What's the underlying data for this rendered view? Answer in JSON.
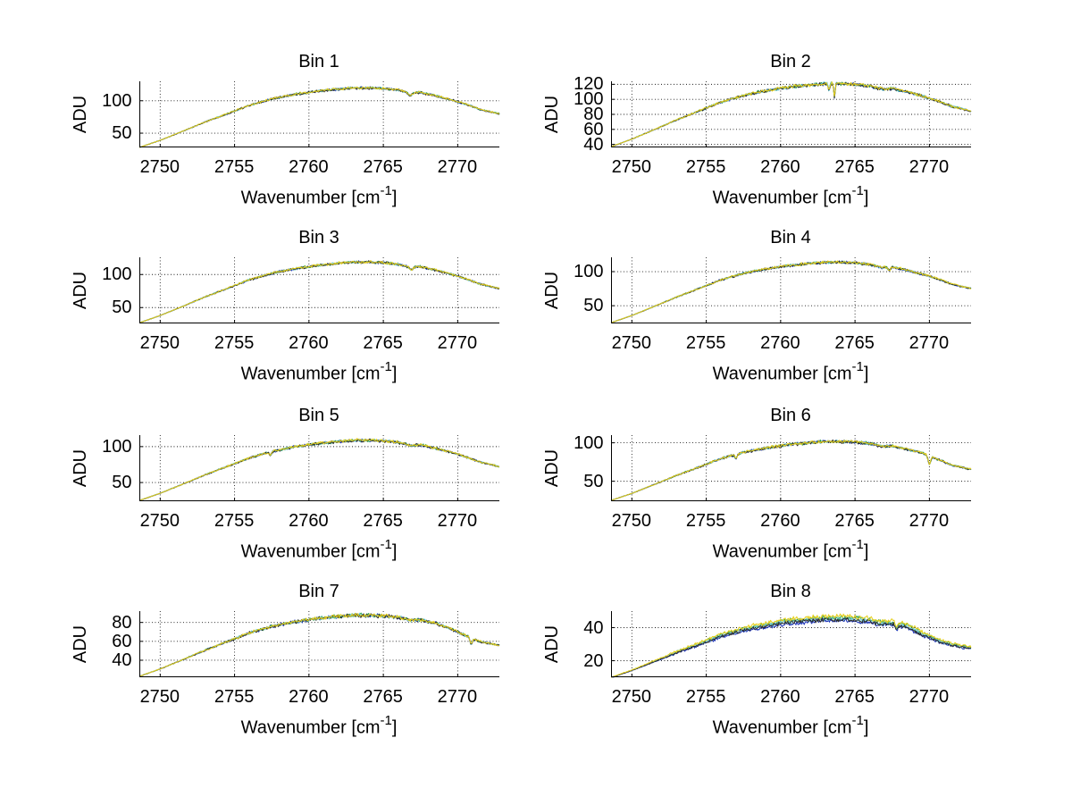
{
  "figure": {
    "background": "#ffffff",
    "axis_labels": {
      "y": "ADU",
      "x_pre": "Wavenumber [cm",
      "x_sup": "-1",
      "x_post": "]"
    },
    "grid_color": "#000000",
    "axis_color": "#000000",
    "series_palette": [
      {
        "name": "blue",
        "color": "#1a30b8"
      },
      {
        "name": "green",
        "color": "#30a24c"
      },
      {
        "name": "cyan",
        "color": "#6ecbd4"
      },
      {
        "name": "dark",
        "color": "#2b2b2b"
      },
      {
        "name": "yellow",
        "color": "#e6cf1a"
      }
    ]
  },
  "chart_data": [
    {
      "type": "line",
      "title": "Bin 1",
      "xlabel": "Wavenumber [cm⁻¹]",
      "ylabel": "ADU",
      "xlim": [
        2748.6,
        2772.8
      ],
      "ylim": [
        28,
        130
      ],
      "xticks": [
        2750,
        2755,
        2760,
        2765,
        2770
      ],
      "yticks": [
        50,
        100
      ],
      "grid": true,
      "x": [
        2748.6,
        2750,
        2751.5,
        2753,
        2754.5,
        2756,
        2757.5,
        2759,
        2760.5,
        2762,
        2763,
        2764,
        2765,
        2766,
        2766.8,
        2767.5,
        2768.5,
        2769.5,
        2770.5,
        2771.5,
        2772.8
      ],
      "adu": [
        28,
        39,
        52.8,
        67.1,
        80,
        93.3,
        103,
        109.9,
        114.9,
        118.2,
        120,
        120,
        119.1,
        116.8,
        112.2,
        113.1,
        108,
        102.1,
        95.2,
        86.9,
        80
      ],
      "spikes": [
        {
          "x": 2766.8,
          "d": 4,
          "w": 0.18
        }
      ],
      "noise": 1.8,
      "series_offsets": [
        -0.4,
        -0.2,
        -0.3,
        -0.5,
        0
      ]
    },
    {
      "type": "line",
      "title": "Bin 2",
      "xlabel": "Wavenumber [cm⁻¹]",
      "ylabel": "ADU",
      "xlim": [
        2748.6,
        2772.8
      ],
      "ylim": [
        36,
        124
      ],
      "xticks": [
        2750,
        2755,
        2760,
        2765,
        2770
      ],
      "yticks": [
        40,
        60,
        80,
        100,
        120
      ],
      "grid": true,
      "x": [
        2748.6,
        2750,
        2751.5,
        2753,
        2754.5,
        2756,
        2757.5,
        2759,
        2760.5,
        2762,
        2763,
        2764,
        2765,
        2766,
        2766.8,
        2767.5,
        2768.5,
        2769.5,
        2770.5,
        2771.5,
        2772.8
      ],
      "adu": [
        37,
        47.1,
        59.7,
        72.7,
        84.5,
        96.6,
        105.5,
        111.8,
        116.4,
        119.3,
        121,
        121,
        120.2,
        118.1,
        113.9,
        114.7,
        110.1,
        104.6,
        98.3,
        90.8,
        84.5
      ],
      "spikes": [
        {
          "x": 2763.25,
          "d": 9,
          "w": 0.07
        },
        {
          "x": 2763.62,
          "d": 19,
          "w": 0.06
        }
      ],
      "noise": 2.0,
      "series_offsets": [
        -0.4,
        -0.2,
        -0.3,
        -0.5,
        0
      ]
    },
    {
      "type": "line",
      "title": "Bin 3",
      "xlabel": "Wavenumber [cm⁻¹]",
      "ylabel": "ADU",
      "xlim": [
        2748.6,
        2772.8
      ],
      "ylim": [
        26,
        126
      ],
      "xticks": [
        2750,
        2755,
        2760,
        2765,
        2770
      ],
      "yticks": [
        50,
        100
      ],
      "grid": true,
      "x": [
        2748.6,
        2750,
        2751.5,
        2753,
        2754.5,
        2756,
        2757.5,
        2759,
        2760.5,
        2762,
        2763,
        2764,
        2765,
        2766,
        2766.8,
        2767.5,
        2768.5,
        2769.5,
        2770.5,
        2771.5,
        2772.8
      ],
      "adu": [
        27,
        38,
        51.8,
        66.1,
        79,
        92.3,
        102,
        108.9,
        113.9,
        117.2,
        119,
        119,
        118.1,
        115.8,
        111.2,
        112.1,
        107,
        101.1,
        94.2,
        85.9,
        79
      ],
      "spikes": [
        {
          "x": 2766.9,
          "d": 4,
          "w": 0.15
        }
      ],
      "noise": 1.8,
      "series_offsets": [
        -0.4,
        -0.2,
        -0.3,
        -0.5,
        0
      ]
    },
    {
      "type": "line",
      "title": "Bin 4",
      "xlabel": "Wavenumber [cm⁻¹]",
      "ylabel": "ADU",
      "xlim": [
        2748.6,
        2772.8
      ],
      "ylim": [
        24,
        121
      ],
      "xticks": [
        2750,
        2755,
        2760,
        2765,
        2770
      ],
      "yticks": [
        50,
        100
      ],
      "grid": true,
      "x": [
        2748.6,
        2750,
        2751.5,
        2753,
        2754.5,
        2756,
        2757.5,
        2759,
        2760.5,
        2762,
        2763,
        2764,
        2765,
        2766,
        2766.8,
        2767.5,
        2768.5,
        2769.5,
        2770.5,
        2771.5,
        2772.8
      ],
      "adu": [
        25,
        35.7,
        49,
        62.8,
        75.3,
        88.2,
        97.5,
        104.2,
        109.1,
        112.2,
        114,
        114,
        113.1,
        110.9,
        106.4,
        107.3,
        102.4,
        96.6,
        90,
        82,
        75.3
      ],
      "spikes": [
        {
          "x": 2767.3,
          "d": 5,
          "w": 0.12
        }
      ],
      "noise": 1.8,
      "series_offsets": [
        -0.4,
        -0.2,
        -0.3,
        -0.5,
        0
      ]
    },
    {
      "type": "line",
      "title": "Bin 5",
      "xlabel": "Wavenumber [cm⁻¹]",
      "ylabel": "ADU",
      "xlim": [
        2748.6,
        2772.8
      ],
      "ylim": [
        24,
        116
      ],
      "xticks": [
        2750,
        2755,
        2760,
        2765,
        2770
      ],
      "yticks": [
        50,
        100
      ],
      "grid": true,
      "x": [
        2748.6,
        2750,
        2751.5,
        2753,
        2754.5,
        2756,
        2757.5,
        2759,
        2760.5,
        2762,
        2763,
        2764,
        2765,
        2766,
        2766.8,
        2767.5,
        2768.5,
        2769.5,
        2770.5,
        2771.5,
        2772.8
      ],
      "adu": [
        25,
        35.1,
        47.7,
        60.7,
        72.5,
        84.6,
        93.5,
        99.8,
        104.4,
        107.3,
        109,
        109,
        108.2,
        106.1,
        101.9,
        102.7,
        98.1,
        92.6,
        86.3,
        78.8,
        72.5
      ],
      "spikes": [
        {
          "x": 2757.4,
          "d": 5,
          "w": 0.1
        }
      ],
      "noise": 1.8,
      "series_offsets": [
        -0.4,
        -0.2,
        -0.3,
        -0.5,
        0
      ]
    },
    {
      "type": "line",
      "title": "Bin 6",
      "xlabel": "Wavenumber [cm⁻¹]",
      "ylabel": "ADU",
      "xlim": [
        2748.6,
        2772.8
      ],
      "ylim": [
        24,
        110
      ],
      "xticks": [
        2750,
        2755,
        2760,
        2765,
        2770
      ],
      "yticks": [
        50,
        100
      ],
      "grid": true,
      "x": [
        2748.6,
        2750,
        2751.5,
        2753,
        2754.5,
        2756,
        2757.5,
        2759,
        2760.5,
        2762,
        2763,
        2764,
        2765,
        2766,
        2766.8,
        2767.5,
        2768.5,
        2769.5,
        2770.5,
        2771.5,
        2772.8
      ],
      "adu": [
        25,
        34.2,
        45.8,
        57.7,
        68.5,
        79.7,
        87.8,
        93.5,
        97.8,
        100.5,
        102,
        102,
        101.2,
        99.3,
        95.5,
        96.2,
        92,
        87,
        79.2,
        71.2,
        65.5
      ],
      "spikes": [
        {
          "x": 2770.0,
          "d": 11,
          "w": 0.12
        },
        {
          "x": 2757.0,
          "d": 5,
          "w": 0.1
        }
      ],
      "noise": 1.8,
      "series_offsets": [
        -0.4,
        -0.2,
        -0.3,
        -0.5,
        0
      ]
    },
    {
      "type": "line",
      "title": "Bin 7",
      "xlabel": "Wavenumber [cm⁻¹]",
      "ylabel": "ADU",
      "xlim": [
        2748.6,
        2772.8
      ],
      "ylim": [
        22,
        92
      ],
      "xticks": [
        2750,
        2755,
        2760,
        2765,
        2770
      ],
      "yticks": [
        40,
        60,
        80
      ],
      "grid": true,
      "x": [
        2748.6,
        2750,
        2751.5,
        2753,
        2754.5,
        2756,
        2757.5,
        2759,
        2760.5,
        2762,
        2763,
        2764,
        2765,
        2766,
        2766.8,
        2767.5,
        2768.5,
        2769.5,
        2770.5,
        2771.5,
        2772.8
      ],
      "adu": [
        23,
        30.8,
        40.6,
        50.6,
        59.7,
        69.2,
        76,
        80.9,
        84.4,
        86.7,
        88,
        88,
        87.4,
        85.7,
        82.5,
        83.1,
        79.6,
        73.5,
        66.5,
        60,
        56
      ],
      "spikes": [
        {
          "x": 2770.9,
          "d": 7,
          "w": 0.1
        }
      ],
      "noise": 1.8,
      "series_offsets": [
        -0.4,
        -0.2,
        -0.3,
        -0.5,
        0
      ]
    },
    {
      "type": "line",
      "title": "Bin 8",
      "xlabel": "Wavenumber [cm⁻¹]",
      "ylabel": "ADU",
      "xlim": [
        2748.6,
        2772.8
      ],
      "ylim": [
        10,
        50
      ],
      "xticks": [
        2750,
        2755,
        2760,
        2765,
        2770
      ],
      "yticks": [
        20,
        40
      ],
      "grid": true,
      "x": [
        2748.6,
        2750,
        2751.5,
        2753,
        2754.5,
        2756,
        2757.5,
        2759,
        2760.5,
        2762,
        2763,
        2764,
        2765,
        2766,
        2766.8,
        2767.5,
        2768.5,
        2769.5,
        2770.5,
        2771.5,
        2772.8
      ],
      "adu": [
        10,
        14.4,
        20,
        25.7,
        30.9,
        36.3,
        40.2,
        42.9,
        45,
        46.3,
        47,
        47,
        46.6,
        45.7,
        43.9,
        44.2,
        42.2,
        37.5,
        33.5,
        30.5,
        28.5
      ],
      "spikes": [
        {
          "x": 2767.8,
          "d": 3,
          "w": 0.1
        }
      ],
      "noise": 1.2,
      "series_offsets": [
        -2.8,
        -0.8,
        -1.6,
        -2.2,
        0
      ]
    }
  ]
}
